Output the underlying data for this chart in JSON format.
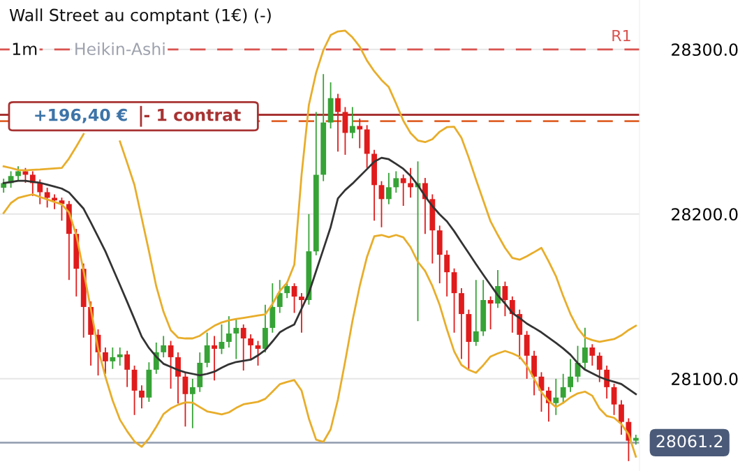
{
  "chart_data": {
    "type": "candlestick",
    "title": "Wall Street au comptant (1€) (-)",
    "categories": [
      null,
      null,
      null,
      null,
      null,
      null,
      null,
      null,
      null,
      null,
      null,
      null,
      null,
      null,
      null,
      null,
      null,
      null,
      null,
      null,
      null,
      null,
      null,
      null,
      null,
      null,
      null,
      null,
      null,
      null,
      null,
      null,
      null,
      null,
      null,
      null,
      null,
      null,
      null,
      null,
      null,
      null,
      null,
      null,
      null,
      null,
      null,
      null,
      null,
      null,
      null,
      null,
      null,
      null,
      null,
      null,
      null,
      null,
      null,
      null,
      null,
      null,
      null,
      null,
      null,
      null,
      null,
      null,
      null,
      null,
      null,
      null,
      null,
      null,
      null,
      null,
      null,
      null,
      null,
      null,
      null,
      null,
      null,
      null,
      null,
      null,
      null,
      null
    ],
    "ylim": [
      28044,
      28330
    ],
    "yticks": [
      {
        "value": 28100,
        "label": "28100.0"
      },
      {
        "value": 28200,
        "label": "28200.0"
      },
      {
        "value": 28300,
        "label": "28300.0"
      }
    ],
    "tick_labels": "y",
    "grid": "y",
    "series": [
      {
        "colors": [
          "#36a336",
          "#36a336",
          "#36a336",
          "#e01b1b",
          "#e01b1b",
          "#e01b1b",
          "#e01b1b",
          "#e01b1b",
          "#e01b1b",
          "#e01b1b",
          "#e01b1b",
          "#e01b1b",
          "#e01b1b",
          "#e01b1b",
          "#e01b1b",
          "#36a336",
          "#36a336",
          "#e01b1b",
          "#e01b1b",
          "#e01b1b",
          "#36a336",
          "#36a336",
          "#36a336",
          "#e01b1b",
          "#e01b1b",
          "#e01b1b",
          "#36a336",
          "#36a336",
          "#36a336",
          "#e01b1b",
          "#36a336",
          "#36a336",
          "#36a336",
          "#e01b1b",
          "#e01b1b",
          "#e01b1b",
          "#36a336",
          "#36a336",
          "#36a336",
          "#36a336",
          "#e01b1b",
          "#e01b1b",
          "#36a336",
          "#36a336",
          "#36a336",
          "#36a336",
          "#e01b1b",
          "#e01b1b",
          "#36a336",
          "#e01b1b",
          "#e01b1b",
          "#e01b1b",
          "#e01b1b",
          "#36a336",
          "#36a336",
          "#e01b1b",
          "#e01b1b",
          "#36a336",
          "#e01b1b",
          "#e01b1b",
          "#e01b1b",
          "#e01b1b",
          "#e01b1b",
          "#e01b1b",
          "#e01b1b",
          "#36a336",
          "#36a336",
          "#e01b1b",
          "#36a336",
          "#e01b1b",
          "#e01b1b",
          "#e01b1b",
          "#e01b1b",
          "#e01b1b",
          "#e01b1b",
          "#e01b1b",
          "#36a336",
          "#36a336",
          "#36a336",
          "#36a336",
          "#36a336",
          "#e01b1b",
          "#e01b1b",
          "#e01b1b",
          "#e01b1b",
          "#e01b1b",
          "#e01b1b",
          "#36a336"
        ],
        "type": "candlestick",
        "ohlc": [
          [
            28216.0,
            28221.5,
            28213.0,
            28218.8
          ],
          [
            28218.8,
            28226.0,
            28216.0,
            28223.1
          ],
          [
            28223.1,
            28229.0,
            28220.0,
            28226.0
          ],
          [
            28226.0,
            28228.0,
            28219.0,
            28223.9
          ],
          [
            28223.9,
            28226.0,
            28211.0,
            28218.8
          ],
          [
            28218.8,
            28221.0,
            28206.0,
            28213.3
          ],
          [
            28213.3,
            28216.0,
            28204.0,
            28209.9
          ],
          [
            28209.9,
            28212.0,
            28203.0,
            28208.3
          ],
          [
            28208.3,
            28210.0,
            28196.0,
            28206.1
          ],
          [
            28206.1,
            28208.0,
            28160.0,
            28188.0
          ],
          [
            28188.0,
            28191.0,
            28150.0,
            28166.8
          ],
          [
            28166.8,
            28170.0,
            28125.0,
            28143.6
          ],
          [
            28143.6,
            28147.0,
            28108.0,
            28126.7
          ],
          [
            28126.7,
            28130.0,
            28102.0,
            28116.1
          ],
          [
            28116.1,
            28119.0,
            28103.0,
            28110.6
          ],
          [
            28110.6,
            28119.0,
            28106.0,
            28113.1
          ],
          [
            28113.1,
            28119.0,
            28108.0,
            28114.8
          ],
          [
            28114.8,
            28117.0,
            28095.0,
            28105.5
          ],
          [
            28105.5,
            28108.0,
            28078.0,
            28092.8
          ],
          [
            28092.8,
            28096.0,
            28082.0,
            28088.6
          ],
          [
            28088.6,
            28110.0,
            28086.0,
            28105.5
          ],
          [
            28105.5,
            28122.0,
            28103.0,
            28116.1
          ],
          [
            28116.1,
            28126.0,
            28113.0,
            28120.3
          ],
          [
            28120.3,
            28123.0,
            28094.0,
            28113.1
          ],
          [
            28113.1,
            28116.0,
            28085.0,
            28101.3
          ],
          [
            28101.3,
            28104.0,
            28071.0,
            28090.7
          ],
          [
            28090.7,
            28100.0,
            28070.0,
            28094.9
          ],
          [
            28094.9,
            28116.0,
            28092.0,
            28109.7
          ],
          [
            28109.7,
            28128.0,
            28107.0,
            28120.3
          ],
          [
            28120.3,
            28126.0,
            28099.0,
            28118.2
          ],
          [
            28118.2,
            28133.0,
            28115.0,
            28122.4
          ],
          [
            28122.4,
            28138.0,
            28119.0,
            28127.5
          ],
          [
            28127.5,
            28136.0,
            28112.0,
            28130.9
          ],
          [
            28130.9,
            28133.0,
            28105.0,
            28124.5
          ],
          [
            28124.5,
            28127.0,
            28112.0,
            28120.3
          ],
          [
            28120.3,
            28123.0,
            28108.0,
            28118.2
          ],
          [
            28118.2,
            28145.0,
            28116.0,
            28130.9
          ],
          [
            28130.9,
            28158.0,
            28128.0,
            28143.6
          ],
          [
            28143.6,
            28160.0,
            28140.0,
            28152.0
          ],
          [
            28152.0,
            28158.0,
            28149.0,
            28156.3
          ],
          [
            28156.3,
            28158.0,
            28140.0,
            28149.9
          ],
          [
            28149.9,
            28152.0,
            28128.0,
            28147.8
          ],
          [
            28147.8,
            28200.0,
            28145.0,
            28177.4
          ],
          [
            28177.4,
            28262.0,
            28175.0,
            28223.9
          ],
          [
            28223.9,
            28285.0,
            28220.0,
            28255.6
          ],
          [
            28255.6,
            28280.0,
            28252.0,
            28270.4
          ],
          [
            28270.4,
            28273.0,
            28238.0,
            28262.0
          ],
          [
            28262.0,
            28265.0,
            28236.0,
            28249.3
          ],
          [
            28249.3,
            28265.0,
            28246.0,
            28253.5
          ],
          [
            28253.5,
            28258.0,
            28240.0,
            28251.4
          ],
          [
            28251.4,
            28254.0,
            28228.0,
            28236.6
          ],
          [
            28236.6,
            28239.0,
            28196.0,
            28217.6
          ],
          [
            28217.6,
            28220.0,
            28192.0,
            28209.1
          ],
          [
            28209.1,
            28225.0,
            28206.0,
            28216.3
          ],
          [
            28216.3,
            28226.0,
            28213.0,
            28221.8
          ],
          [
            28221.8,
            28224.0,
            28205.0,
            28218.8
          ],
          [
            28218.8,
            28228.0,
            28210.0,
            28216.3
          ],
          [
            28216.3,
            28232.0,
            28135.0,
            28218.8
          ],
          [
            28218.8,
            28222.0,
            28188.0,
            28209.1
          ],
          [
            28209.1,
            28212.0,
            28170.0,
            28190.1
          ],
          [
            28190.1,
            28193.0,
            28158.0,
            28175.3
          ],
          [
            28175.3,
            28178.0,
            28150.0,
            28164.7
          ],
          [
            28164.7,
            28167.0,
            28128.0,
            28152.0
          ],
          [
            28152.0,
            28155.0,
            28112.0,
            28139.3
          ],
          [
            28139.3,
            28142.0,
            28106.0,
            28122.4
          ],
          [
            28122.4,
            28160.0,
            28120.0,
            28128.8
          ],
          [
            28128.8,
            28160.0,
            28126.0,
            28147.8
          ],
          [
            28147.8,
            28150.0,
            28130.0,
            28145.7
          ],
          [
            28145.7,
            28166.0,
            28143.0,
            28156.3
          ],
          [
            28156.3,
            28159.0,
            28138.0,
            28147.8
          ],
          [
            28147.8,
            28150.0,
            28128.0,
            28139.3
          ],
          [
            28139.3,
            28142.0,
            28112.0,
            28126.7
          ],
          [
            28126.7,
            28129.0,
            28100.0,
            28114.0
          ],
          [
            28114.0,
            28117.0,
            28090.0,
            28101.3
          ],
          [
            28101.3,
            28104.0,
            28080.0,
            28092.8
          ],
          [
            28092.8,
            28095.0,
            28074.0,
            28085.2
          ],
          [
            28085.2,
            28100.0,
            28078.0,
            28088.6
          ],
          [
            28088.6,
            28103.0,
            28085.0,
            28094.9
          ],
          [
            28094.9,
            28112.0,
            28092.0,
            28101.3
          ],
          [
            28101.3,
            28120.0,
            28098.0,
            28109.7
          ],
          [
            28109.7,
            28131.0,
            28106.0,
            28119.0
          ],
          [
            28119.0,
            28121.0,
            28108.0,
            28114.0
          ],
          [
            28114.0,
            28116.0,
            28098.0,
            28105.5
          ],
          [
            28105.5,
            28108.0,
            28088.0,
            28094.9
          ],
          [
            28094.9,
            28097.0,
            28078.0,
            28084.4
          ],
          [
            28084.4,
            28087.0,
            28066.0,
            28073.8
          ],
          [
            28073.8,
            28076.0,
            28050.0,
            28062.4
          ],
          [
            28062.4,
            28066.0,
            28060.0,
            28064.1
          ]
        ]
      },
      {
        "type": "line",
        "color": "#e8ad2a",
        "values": [
          28229.0,
          28228.0,
          28226.8,
          28226.6,
          28226.9,
          28227.1,
          28227.4,
          28227.7,
          28228.0,
          28233.8,
          28241.0,
          28248.6,
          null,
          null,
          null,
          null,
          28244.1,
          28231.1,
          28217.7,
          28197.6,
          28177.4,
          28156.2,
          28140.7,
          28129.5,
          28125.0,
          28124.5,
          28124.5,
          28126.1,
          28129.3,
          28132.2,
          28134.2,
          28135.5,
          28136.3,
          28137.0,
          28137.7,
          28138.4,
          28139.1,
          28145.5,
          28153.3,
          28158.3,
          28169.3,
          28223.9,
          28266.2,
          28285.8,
          28299.6,
          28308.7,
          28310.9,
          28311.4,
          28307.3,
          28301.7,
          28293.2,
          28286.7,
          28281.4,
          28277.1,
          28267.2,
          28256.7,
          28249.2,
          28244.7,
          28243.7,
          28245.5,
          28250.0,
          28252.8,
          28253.0,
          28246.3,
          28234.3,
          28221.0,
          28208.3,
          28195.6,
          28187.3,
          28179.5,
          28173.4,
          28172.3,
          28174.4,
          28176.9,
          28179.5,
          28171.3,
          28162.3,
          28150.2,
          28139.3,
          28130.7,
          28125.1,
          28123.5,
          28122.4,
          28123.3,
          28124.1,
          28126.4,
          28129.6,
          28132.2
        ]
      },
      {
        "type": "line",
        "color": "#e8ad2a",
        "values": [
          28200.6,
          28206.7,
          28209.8,
          28211.0,
          28212.0,
          28210.4,
          28208.9,
          28207.4,
          28205.9,
          28201.0,
          28187.2,
          28165.5,
          28142.3,
          28118.2,
          28101.3,
          28086.8,
          28075.2,
          28068.1,
          28062.0,
          28058.7,
          28063.8,
          28070.8,
          28078.6,
          28082.0,
          28084.2,
          28085.7,
          28085.5,
          28082.8,
          28080.2,
          28079.3,
          28078.4,
          28079.6,
          28082.3,
          28084.5,
          28085.3,
          28086.0,
          28087.8,
          28092.2,
          28096.7,
          28098.1,
          28099.2,
          28092.8,
          28075.9,
          28063.0,
          28061.7,
          28069.3,
          28087.4,
          28110.6,
          28135.1,
          28156.3,
          28174.0,
          28186.5,
          28187.3,
          28186.0,
          28187.3,
          28185.9,
          28179.9,
          28171.0,
          28165.4,
          28156.3,
          28144.8,
          28130.0,
          28116.6,
          28108.4,
          28105.4,
          28103.6,
          28108.2,
          28113.5,
          28115.4,
          28116.9,
          28115.4,
          28113.4,
          28107.8,
          28100.0,
          28091.8,
          28086.5,
          28082.8,
          28085.4,
          28088.7,
          28091.1,
          28092.2,
          28089.7,
          28081.9,
          28077.4,
          28076.3,
          28072.5,
          28066.3,
          28052.7
        ]
      },
      {
        "type": "line",
        "color": "#333333",
        "values": [
          28218.8,
          28219.5,
          28220.2,
          28220.2,
          28219.6,
          28219.0,
          28217.9,
          28216.7,
          28215.5,
          28213.1,
          28208.2,
          28203.3,
          28194.9,
          28186.2,
          28177.4,
          28167.2,
          28157.0,
          28146.7,
          28136.2,
          28125.6,
          28118.7,
          28113.4,
          28109.1,
          28107.2,
          28105.3,
          28103.9,
          28103.0,
          28102.1,
          28103.0,
          28104.3,
          28106.7,
          28108.8,
          28110.2,
          28110.9,
          28111.6,
          28114.2,
          28117.5,
          28122.7,
          28128.2,
          28130.8,
          28133.0,
          28142.5,
          28152.0,
          28165.4,
          28178.7,
          28192.1,
          28209.5,
          28214.6,
          28218.5,
          28222.9,
          28227.3,
          28231.8,
          28234.2,
          28233.3,
          28230.5,
          28227.5,
          28223.2,
          28217.6,
          28210.8,
          28204.8,
          28199.8,
          28195.6,
          28189.6,
          28182.9,
          28176.3,
          28169.6,
          28163.2,
          28156.9,
          28150.7,
          28145.7,
          28139.9,
          28136.9,
          28133.5,
          28130.9,
          28128.2,
          28125.0,
          28121.8,
          28118.4,
          28114.6,
          28109.5,
          28105.5,
          28103.3,
          28101.1,
          28099.4,
          28098.2,
          28096.8,
          28093.7,
          28090.7
        ]
      }
    ],
    "ref_lines": [
      {
        "axis": "y",
        "value": 28300,
        "label": "R1",
        "color": "#d9534f",
        "line_style": "dashed"
      },
      {
        "axis": "y",
        "value": 28260.3,
        "color": "#a83232",
        "line_style": "solid"
      },
      {
        "axis": "y",
        "value": 28256.4,
        "color": "#e0622a",
        "line_style": "dashed"
      },
      {
        "axis": "y",
        "value": 28061.2,
        "label": "28061.2",
        "color": "#9aa3b5",
        "line_style": "solid"
      }
    ],
    "annotations": [
      "1m",
      "Heikin-Ashi",
      "+196,40 €",
      "- 1 contrat"
    ]
  }
}
